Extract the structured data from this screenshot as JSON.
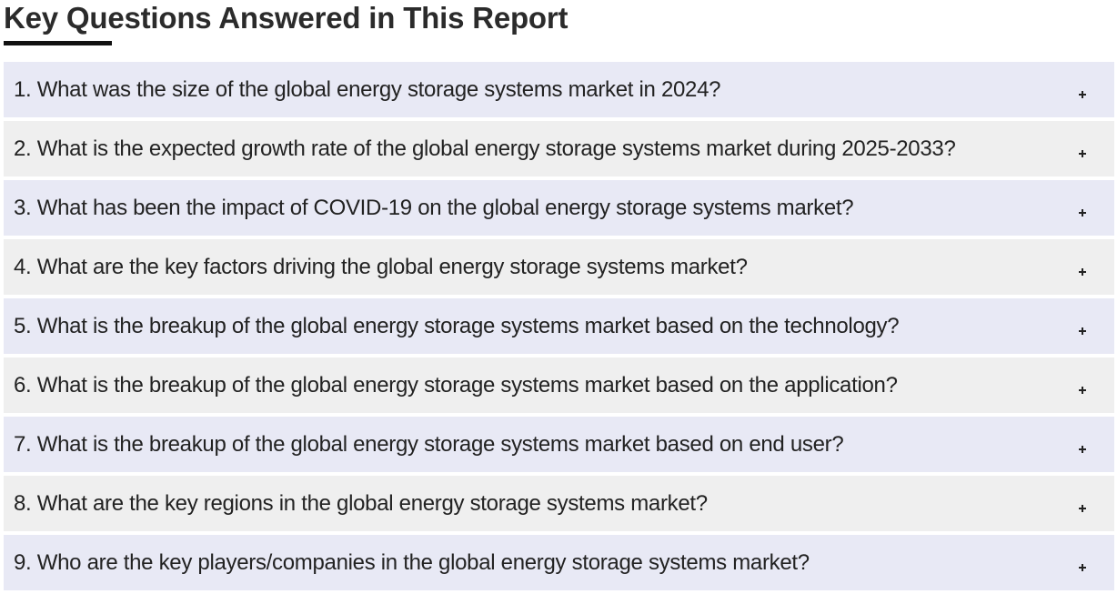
{
  "section": {
    "title": "Key Questions Answered in This Report"
  },
  "faq": [
    {
      "question": "1. What was the size of the global energy storage systems market in 2024?"
    },
    {
      "question": "2. What is the expected growth rate of the global energy storage systems market during 2025-2033?"
    },
    {
      "question": "3. What has been the impact of COVID-19 on the global energy storage systems market?"
    },
    {
      "question": "4. What are the key factors driving the global energy storage systems market?"
    },
    {
      "question": "5. What is the breakup of the global energy storage systems market based on the technology?"
    },
    {
      "question": "6. What is the breakup of the global energy storage systems market based on the application?"
    },
    {
      "question": "7. What is the breakup of the global energy storage systems market based on end user?"
    },
    {
      "question": "8. What are the key regions in the global energy storage systems market?"
    },
    {
      "question": "9. Who are the key players/companies in the global energy storage systems market?"
    }
  ],
  "icons": {
    "toggle": "plus-icon"
  },
  "colors": {
    "row_odd": "#e8e9f5",
    "row_even": "#efefef",
    "underline": "#111111"
  }
}
